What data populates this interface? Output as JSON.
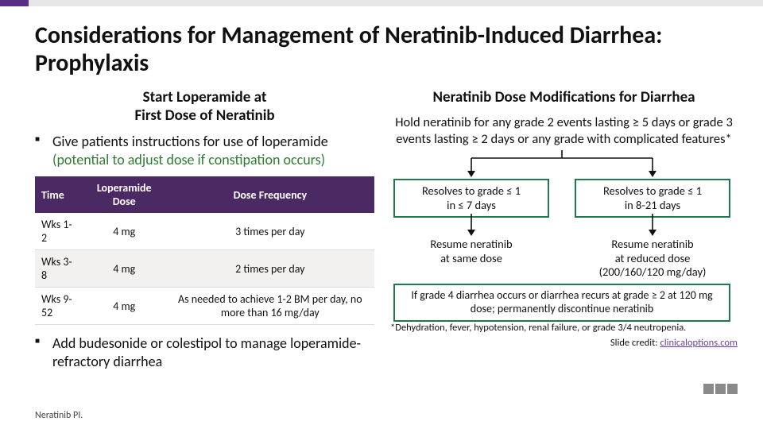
{
  "title": "Considerations for Management of Neratinib-Induced Diarrhea: Prophylaxis",
  "left": {
    "subhead": "Start Loperamide at\nFirst Dose of Neratinib",
    "bullet1_pre": "Give patients instructions for use of loperamide ",
    "bullet1_green": "(potential to adjust dose if constipation occurs)",
    "table": {
      "headers": [
        "Time",
        "Loperamide Dose",
        "Dose Frequency"
      ],
      "rows": [
        [
          "Wks 1-2",
          "4 mg",
          "3 times per day"
        ],
        [
          "Wks 3-8",
          "4 mg",
          "2 times per day"
        ],
        [
          "Wks 9-52",
          "4 mg",
          "As needed to achieve 1-2 BM per day, no more than 16 mg/day"
        ]
      ]
    },
    "bullet2": "Add budesonide or colestipol to manage loperamide-refractory diarrhea"
  },
  "right": {
    "subhead": "Neratinib Dose Modifications for Diarrhea",
    "hold": "Hold neratinib for any grade 2 events lasting ≥ 5 days or grade 3 events lasting ≥ 2 days or any grade with complicated features*",
    "box1": "Resolves to grade ≤ 1\nin ≤ 7 days",
    "box2": "Resolves to grade ≤ 1\nin 8-21 days",
    "res1": "Resume neratinib\nat same dose",
    "res2": "Resume neratinib\nat reduced dose\n(200/160/120 mg/day)",
    "footbox": "If grade 4 diarrhea occurs or diarrhea recurs at grade ≥ 2 at 120 mg dose; permanently discontinue neratinib",
    "footnote": "*Dehydration, fever, hypotension, renal failure, or grade 3/4 neutropenia.",
    "credit_label": "Slide credit: ",
    "credit_link": "clinicaloptions.com"
  },
  "ref": "Neratinib PI."
}
